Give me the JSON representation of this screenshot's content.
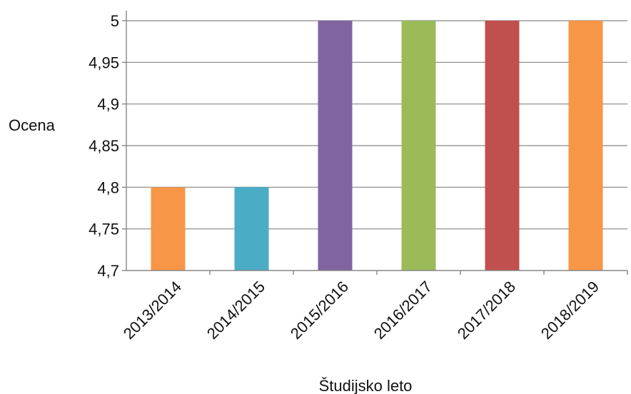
{
  "chart_data": {
    "type": "bar",
    "title": "",
    "xlabel": "Študijsko leto",
    "ylabel": "Ocena",
    "categories": [
      "2013/2014",
      "2014/2015",
      "2015/2016",
      "2016/2017",
      "2017/2018",
      "2018/2019"
    ],
    "values": [
      4.8,
      4.8,
      5,
      5,
      5,
      5
    ],
    "colors": [
      "#F79646",
      "#4BACC6",
      "#8064A2",
      "#9BBB59",
      "#C0504D",
      "#F79646"
    ],
    "ylim": [
      4.7,
      5
    ],
    "yticks": [
      "4,7",
      "4,75",
      "4,8",
      "4,85",
      "4,9",
      "4,95",
      "5"
    ],
    "grid": true,
    "legend": "none"
  }
}
